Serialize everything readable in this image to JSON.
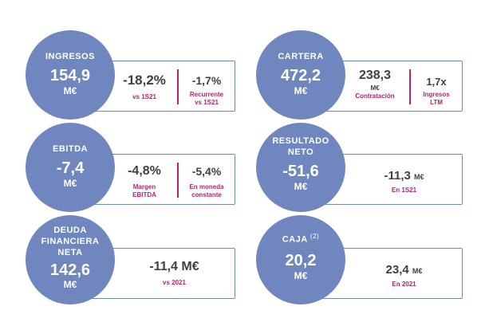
{
  "ingresos": {
    "title": "INGRESOS",
    "value": "154,9",
    "unit": "M€",
    "m1_value": "-18,2%",
    "m1_label": "vs 1S21",
    "m2_value": "-1,7%",
    "m2_label_l1": "Recurrente",
    "m2_label_l2": "vs 1S21"
  },
  "cartera": {
    "title": "CARTERA",
    "value": "472,2",
    "unit": "M€",
    "m1_value": "238,3",
    "m1_unit": "M€",
    "m1_label": "Contratación",
    "m2_value": "1,7x",
    "m2_label_l1": "Ingresos",
    "m2_label_l2": "LTM"
  },
  "ebitda": {
    "title": "EBITDA",
    "value": "-7,4",
    "unit": "M€",
    "m1_value": "-4,8%",
    "m1_label_l1": "Margen",
    "m1_label_l2": "EBITDA",
    "m2_value": "-5,4%",
    "m2_label_l1": "En moneda",
    "m2_label_l2": "constante"
  },
  "resultado": {
    "title_l1": "RESULTADO",
    "title_l2": "NETO",
    "value": "-51,6",
    "unit": "M€",
    "m_value": "-11,3",
    "m_unit": "M€",
    "m_label": "En 1S21"
  },
  "deuda": {
    "title_l1": "DEUDA",
    "title_l2": "FINANCIERA",
    "title_l3": "NETA",
    "value": "142,6",
    "unit": "M€",
    "m_value": "-11,4 M€",
    "m_label": "vs 2021"
  },
  "caja": {
    "title": "CAJA",
    "title_note": "(2)",
    "value": "20,2",
    "unit": "M€",
    "m_value": "23,4",
    "m_unit": "M€",
    "m_label": "En 2021"
  },
  "colors": {
    "circle": "#6f86bf",
    "accent": "#b8236e",
    "text": "#404040"
  }
}
